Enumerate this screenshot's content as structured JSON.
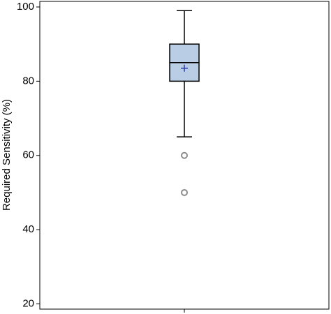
{
  "chart_data": {
    "type": "box",
    "y_label": "Required Sensitivity (%)",
    "categories": [
      null
    ],
    "min": [
      65
    ],
    "q1": [
      80
    ],
    "median": [
      85
    ],
    "q3": [
      90
    ],
    "max": [
      99
    ],
    "mean": [
      83.5
    ],
    "outliers": [
      [
        60,
        50
      ]
    ],
    "box_color": "#b9cde5",
    "mean_color": "#2f3fb0",
    "outlier_color": "#8c8c8c",
    "ylim": [
      18.6,
      101.5
    ],
    "yticks": [
      20,
      40,
      60,
      80,
      100
    ]
  }
}
